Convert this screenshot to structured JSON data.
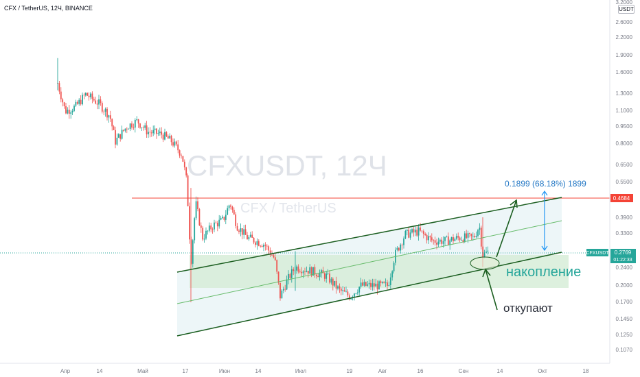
{
  "header": {
    "title": "CFX / TetherUS, 12Ч, BINANCE"
  },
  "watermark": {
    "symbol": "CFXUSDT, 12Ч",
    "name": "CFX / TetherUS"
  },
  "axis": {
    "unit": "USDT",
    "y_ticks": [
      "3.2000",
      "2.6000",
      "2.2000",
      "1.9000",
      "1.6000",
      "1.3000",
      "1.1000",
      "0.9500",
      "0.8000",
      "0.6500",
      "0.5500",
      "0.4684",
      "0.3900",
      "0.3300",
      "0.2769",
      "0.2400",
      "0.2000",
      "0.1700",
      "0.1450",
      "0.1250",
      "0.1070"
    ],
    "x_ticks": [
      "Апр",
      "14",
      "Май",
      "17",
      "Июн",
      "14",
      "Июл",
      "19",
      "Авг",
      "16",
      "Сен",
      "14",
      "Окт",
      "18"
    ]
  },
  "price_labels": {
    "resistance": "0.4684",
    "last_symbol": "CFXUSDT",
    "last_price": "0.2769",
    "countdown": "01:22:33"
  },
  "annotations": {
    "measure": "0.1899 (68.18%) 1899",
    "accumulation": "накопление",
    "buyback": "откупают"
  },
  "colors": {
    "up": "#26a69a",
    "down": "#ef5350",
    "channel": "#1b5e20",
    "mid_line": "#66bb6a",
    "resistance": "#f44336",
    "measure": "#2196f3",
    "accent_label": "#26a69a"
  },
  "chart_data": {
    "type": "candlestick",
    "timeframe": "12Ч",
    "symbol": "CFXUSDT",
    "scale": "log",
    "grid": false,
    "ylim": [
      0.1,
      3.3
    ],
    "series": [
      {
        "name": "CFXUSDT",
        "x": [
          "Апр",
          "14",
          "Май",
          "17",
          "Июн",
          "14",
          "Июл",
          "19",
          "Авг",
          "16",
          "Сен"
        ],
        "close": [
          1.3,
          1.25,
          0.96,
          0.78,
          0.4,
          0.33,
          0.26,
          0.21,
          0.22,
          0.33,
          0.28
        ]
      }
    ],
    "resistance_level": 0.4684,
    "last_price": 0.2769
  }
}
